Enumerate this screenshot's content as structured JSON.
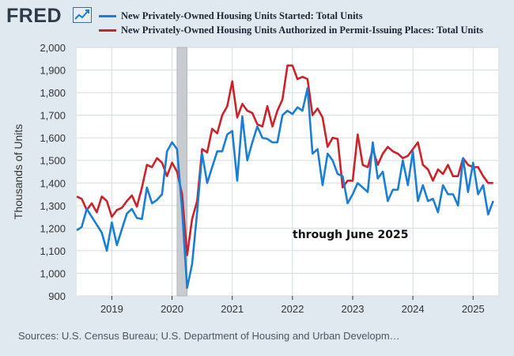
{
  "header": {
    "logo_text": "FRED",
    "logo_icon": "trend-line-icon"
  },
  "colors": {
    "series_started": "#1a7fd4",
    "series_permits": "#cc2229",
    "recession": "#c8ccd1",
    "background": "#e1e9f0",
    "plot_bg": "#ffffff",
    "grid": "#d6dbe0"
  },
  "source": "Sources: U.S. Census Bureau; U.S. Department of Housing and Urban Developm…",
  "chart_data": {
    "type": "line",
    "title": "",
    "ylabel": "Thousands of Units",
    "xlabel": "",
    "annotation": "through June 2025",
    "ylim": [
      900,
      2000
    ],
    "yticks": [
      900,
      1000,
      1100,
      1200,
      1300,
      1400,
      1500,
      1600,
      1700,
      1800,
      1900,
      2000
    ],
    "ytick_labels": [
      "900",
      "1,000",
      "1,100",
      "1,200",
      "1,300",
      "1,400",
      "1,500",
      "1,600",
      "1,700",
      "1,800",
      "1,900",
      "2,000"
    ],
    "xticks": [
      "2019",
      "2020",
      "2021",
      "2022",
      "2023",
      "2024",
      "2025"
    ],
    "x_start": "2018-06",
    "x_end": "2025-06",
    "grid": true,
    "legend_position": "top",
    "recession": {
      "start": "2020-02",
      "end": "2020-04"
    },
    "series": [
      {
        "name": "New Privately-Owned Housing Units Started: Total Units",
        "values": [
          1190,
          1205,
          1285,
          1250,
          1215,
          1180,
          1100,
          1225,
          1125,
          1195,
          1265,
          1285,
          1245,
          1240,
          1380,
          1310,
          1325,
          1350,
          1540,
          1580,
          1550,
          1280,
          935,
          1040,
          1270,
          1530,
          1400,
          1470,
          1540,
          1540,
          1615,
          1630,
          1410,
          1695,
          1500,
          1580,
          1650,
          1600,
          1595,
          1580,
          1580,
          1700,
          1720,
          1705,
          1735,
          1720,
          1820,
          1530,
          1550,
          1390,
          1530,
          1500,
          1440,
          1430,
          1310,
          1350,
          1400,
          1380,
          1360,
          1580,
          1420,
          1450,
          1320,
          1370,
          1370,
          1500,
          1390,
          1540,
          1320,
          1390,
          1320,
          1330,
          1270,
          1390,
          1350,
          1350,
          1300,
          1510,
          1360,
          1490,
          1350,
          1390,
          1260,
          1320
        ]
      },
      {
        "name": "New Privately-Owned Housing Units Authorized in Permit-Issuing Places: Total Units",
        "values": [
          1340,
          1330,
          1280,
          1310,
          1270,
          1340,
          1320,
          1250,
          1280,
          1290,
          1320,
          1345,
          1295,
          1380,
          1480,
          1470,
          1510,
          1490,
          1430,
          1490,
          1450,
          1350,
          1080,
          1240,
          1320,
          1550,
          1535,
          1640,
          1620,
          1700,
          1740,
          1850,
          1690,
          1750,
          1720,
          1710,
          1660,
          1650,
          1740,
          1650,
          1720,
          1770,
          1920,
          1920,
          1860,
          1870,
          1860,
          1700,
          1730,
          1690,
          1560,
          1600,
          1595,
          1380,
          1410,
          1410,
          1615,
          1480,
          1470,
          1550,
          1480,
          1530,
          1560,
          1540,
          1530,
          1510,
          1520,
          1550,
          1580,
          1480,
          1460,
          1410,
          1460,
          1440,
          1480,
          1430,
          1430,
          1510,
          1480,
          1470,
          1470,
          1430,
          1400,
          1400
        ]
      }
    ]
  }
}
